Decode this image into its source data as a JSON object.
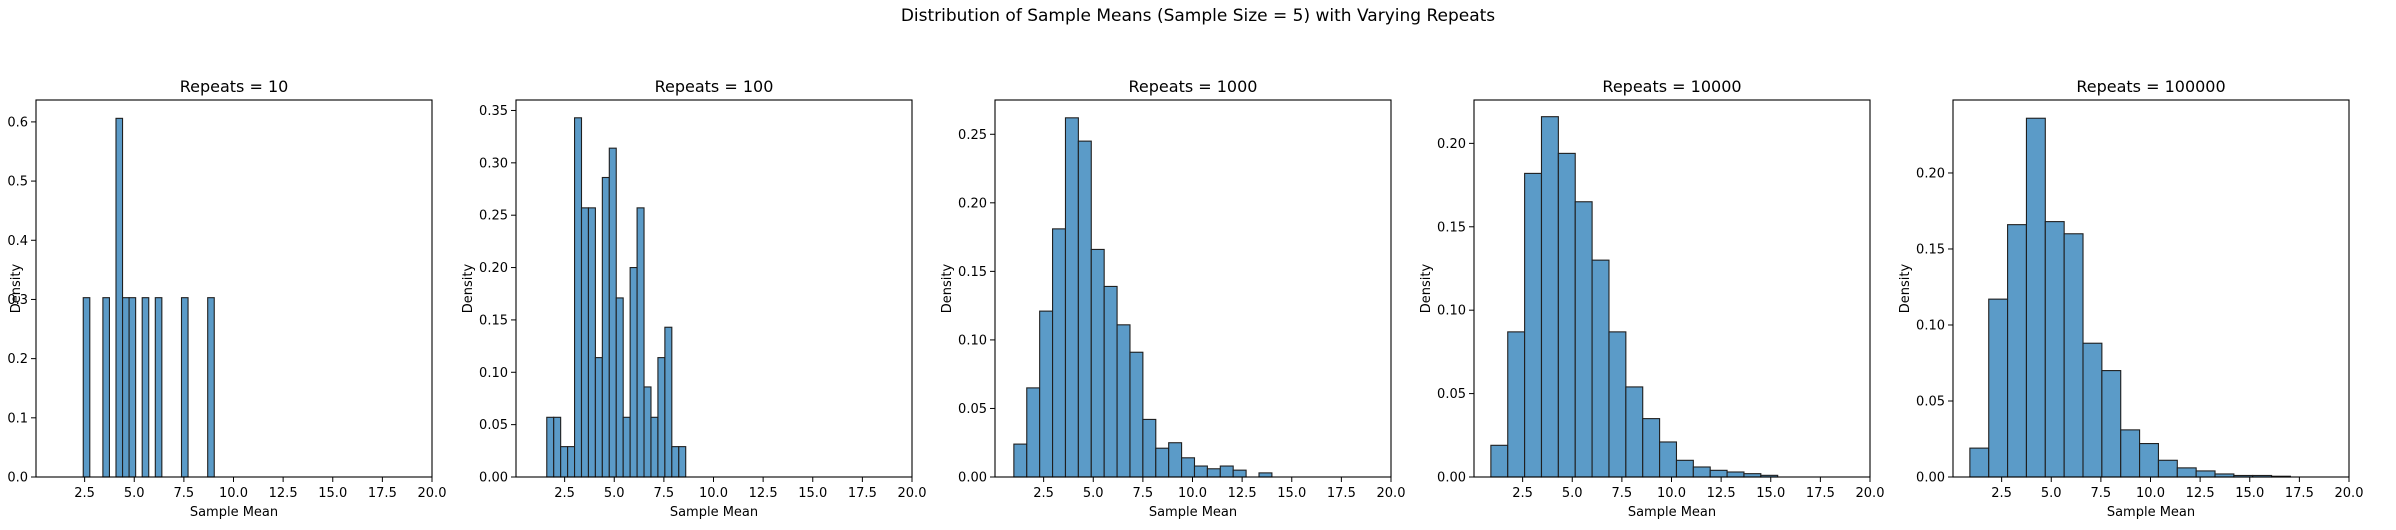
{
  "figure": {
    "suptitle": "Distribution of Sample Means (Sample Size = 5) with Varying Repeats"
  },
  "colors": {
    "bar_fill": "#5b9bc8",
    "bar_edge": "#1f1f1f"
  },
  "chart_data": [
    {
      "type": "bar",
      "title": "Repeats = 10",
      "xlabel": "Sample Mean",
      "ylabel": "Density",
      "xlim": [
        0.05,
        20.0
      ],
      "ylim": [
        0,
        0.637
      ],
      "xticks": [
        2.5,
        5.0,
        7.5,
        10.0,
        12.5,
        15.0,
        17.5,
        20.0
      ],
      "xtick_labels": [
        "2.5",
        "5.0",
        "7.5",
        "10.0",
        "12.5",
        "15.0",
        "17.5",
        "20.0"
      ],
      "yticks": [
        0,
        0.1,
        0.2,
        0.3,
        0.4,
        0.5,
        0.6
      ],
      "ytick_labels": [
        "0.0",
        "0.1",
        "0.2",
        "0.3",
        "0.4",
        "0.5",
        "0.6"
      ],
      "bins": [
        {
          "x0": 2.43,
          "x1": 2.76,
          "density": 0.303
        },
        {
          "x0": 3.42,
          "x1": 3.75,
          "density": 0.303
        },
        {
          "x0": 4.08,
          "x1": 4.41,
          "density": 0.606
        },
        {
          "x0": 4.41,
          "x1": 4.74,
          "density": 0.303
        },
        {
          "x0": 4.74,
          "x1": 5.07,
          "density": 0.303
        },
        {
          "x0": 5.4,
          "x1": 5.73,
          "density": 0.303
        },
        {
          "x0": 6.06,
          "x1": 6.39,
          "density": 0.303
        },
        {
          "x0": 7.38,
          "x1": 7.71,
          "density": 0.303
        },
        {
          "x0": 8.7,
          "x1": 9.03,
          "density": 0.303
        }
      ]
    },
    {
      "type": "bar",
      "title": "Repeats = 100",
      "xlabel": "Sample Mean",
      "ylabel": "Density",
      "xlim": [
        0.05,
        20.0
      ],
      "ylim": [
        0,
        0.36
      ],
      "xticks": [
        2.5,
        5.0,
        7.5,
        10.0,
        12.5,
        15.0,
        17.5,
        20.0
      ],
      "xtick_labels": [
        "2.5",
        "5.0",
        "7.5",
        "10.0",
        "12.5",
        "15.0",
        "17.5",
        "20.0"
      ],
      "yticks": [
        0,
        0.05,
        0.1,
        0.15,
        0.2,
        0.25,
        0.3,
        0.35
      ],
      "ytick_labels": [
        "0.00",
        "0.05",
        "0.10",
        "0.15",
        "0.20",
        "0.25",
        "0.30",
        "0.35"
      ],
      "bins": [
        {
          "x0": 1.6,
          "x1": 1.95,
          "density": 0.057
        },
        {
          "x0": 1.95,
          "x1": 2.3,
          "density": 0.057
        },
        {
          "x0": 2.3,
          "x1": 2.65,
          "density": 0.029
        },
        {
          "x0": 2.65,
          "x1": 3.0,
          "density": 0.029
        },
        {
          "x0": 3.0,
          "x1": 3.35,
          "density": 0.343
        },
        {
          "x0": 3.35,
          "x1": 3.7,
          "density": 0.257
        },
        {
          "x0": 3.7,
          "x1": 4.05,
          "density": 0.257
        },
        {
          "x0": 4.05,
          "x1": 4.4,
          "density": 0.114
        },
        {
          "x0": 4.4,
          "x1": 4.75,
          "density": 0.286
        },
        {
          "x0": 4.75,
          "x1": 5.1,
          "density": 0.314
        },
        {
          "x0": 5.1,
          "x1": 5.45,
          "density": 0.171
        },
        {
          "x0": 5.45,
          "x1": 5.8,
          "density": 0.057
        },
        {
          "x0": 5.8,
          "x1": 6.15,
          "density": 0.2
        },
        {
          "x0": 6.15,
          "x1": 6.5,
          "density": 0.257
        },
        {
          "x0": 6.5,
          "x1": 6.85,
          "density": 0.086
        },
        {
          "x0": 6.85,
          "x1": 7.2,
          "density": 0.057
        },
        {
          "x0": 7.2,
          "x1": 7.55,
          "density": 0.114
        },
        {
          "x0": 7.55,
          "x1": 7.9,
          "density": 0.143
        },
        {
          "x0": 7.9,
          "x1": 8.25,
          "density": 0.029
        },
        {
          "x0": 8.25,
          "x1": 8.6,
          "density": 0.029
        }
      ]
    },
    {
      "type": "bar",
      "title": "Repeats = 1000",
      "xlabel": "Sample Mean",
      "ylabel": "Density",
      "xlim": [
        0.05,
        20.0
      ],
      "ylim": [
        0,
        0.275
      ],
      "xticks": [
        2.5,
        5.0,
        7.5,
        10.0,
        12.5,
        15.0,
        17.5,
        20.0
      ],
      "xtick_labels": [
        "2.5",
        "5.0",
        "7.5",
        "10.0",
        "12.5",
        "15.0",
        "17.5",
        "20.0"
      ],
      "yticks": [
        0,
        0.05,
        0.1,
        0.15,
        0.2,
        0.25
      ],
      "ytick_labels": [
        "0.00",
        "0.05",
        "0.10",
        "0.15",
        "0.20",
        "0.25"
      ],
      "bins": [
        {
          "x0": 1.0,
          "x1": 1.65,
          "density": 0.024
        },
        {
          "x0": 1.65,
          "x1": 2.3,
          "density": 0.065
        },
        {
          "x0": 2.3,
          "x1": 2.95,
          "density": 0.121
        },
        {
          "x0": 2.95,
          "x1": 3.6,
          "density": 0.181
        },
        {
          "x0": 3.6,
          "x1": 4.25,
          "density": 0.262
        },
        {
          "x0": 4.25,
          "x1": 4.9,
          "density": 0.245
        },
        {
          "x0": 4.9,
          "x1": 5.55,
          "density": 0.166
        },
        {
          "x0": 5.55,
          "x1": 6.2,
          "density": 0.139
        },
        {
          "x0": 6.2,
          "x1": 6.85,
          "density": 0.111
        },
        {
          "x0": 6.85,
          "x1": 7.5,
          "density": 0.091
        },
        {
          "x0": 7.5,
          "x1": 8.15,
          "density": 0.042
        },
        {
          "x0": 8.15,
          "x1": 8.8,
          "density": 0.021
        },
        {
          "x0": 8.8,
          "x1": 9.45,
          "density": 0.025
        },
        {
          "x0": 9.45,
          "x1": 10.1,
          "density": 0.014
        },
        {
          "x0": 10.1,
          "x1": 10.75,
          "density": 0.008
        },
        {
          "x0": 10.75,
          "x1": 11.4,
          "density": 0.006
        },
        {
          "x0": 11.4,
          "x1": 12.05,
          "density": 0.008
        },
        {
          "x0": 12.05,
          "x1": 12.7,
          "density": 0.005
        },
        {
          "x0": 12.7,
          "x1": 13.35,
          "density": 0.0
        },
        {
          "x0": 13.35,
          "x1": 14.0,
          "density": 0.003
        }
      ]
    },
    {
      "type": "bar",
      "title": "Repeats = 10000",
      "xlabel": "Sample Mean",
      "ylabel": "Density",
      "xlim": [
        0.05,
        20.0
      ],
      "ylim": [
        0,
        0.226
      ],
      "xticks": [
        2.5,
        5.0,
        7.5,
        10.0,
        12.5,
        15.0,
        17.5,
        20.0
      ],
      "xtick_labels": [
        "2.5",
        "5.0",
        "7.5",
        "10.0",
        "12.5",
        "15.0",
        "17.5",
        "20.0"
      ],
      "yticks": [
        0,
        0.05,
        0.1,
        0.15,
        0.2
      ],
      "ytick_labels": [
        "0.00",
        "0.05",
        "0.10",
        "0.15",
        "0.20"
      ],
      "bins": [
        {
          "x0": 0.9,
          "x1": 1.75,
          "density": 0.019
        },
        {
          "x0": 1.75,
          "x1": 2.6,
          "density": 0.087
        },
        {
          "x0": 2.6,
          "x1": 3.45,
          "density": 0.182
        },
        {
          "x0": 3.45,
          "x1": 4.3,
          "density": 0.216
        },
        {
          "x0": 4.3,
          "x1": 5.15,
          "density": 0.194
        },
        {
          "x0": 5.15,
          "x1": 6.0,
          "density": 0.165
        },
        {
          "x0": 6.0,
          "x1": 6.85,
          "density": 0.13
        },
        {
          "x0": 6.85,
          "x1": 7.7,
          "density": 0.087
        },
        {
          "x0": 7.7,
          "x1": 8.55,
          "density": 0.054
        },
        {
          "x0": 8.55,
          "x1": 9.4,
          "density": 0.035
        },
        {
          "x0": 9.4,
          "x1": 10.25,
          "density": 0.021
        },
        {
          "x0": 10.25,
          "x1": 11.1,
          "density": 0.01
        },
        {
          "x0": 11.1,
          "x1": 11.95,
          "density": 0.006
        },
        {
          "x0": 11.95,
          "x1": 12.8,
          "density": 0.004
        },
        {
          "x0": 12.8,
          "x1": 13.65,
          "density": 0.003
        },
        {
          "x0": 13.65,
          "x1": 14.5,
          "density": 0.002
        },
        {
          "x0": 14.5,
          "x1": 15.35,
          "density": 0.001
        }
      ]
    },
    {
      "type": "bar",
      "title": "Repeats = 100000",
      "xlabel": "Sample Mean",
      "ylabel": "Density",
      "xlim": [
        0.05,
        20.0
      ],
      "ylim": [
        0,
        0.248
      ],
      "xticks": [
        2.5,
        5.0,
        7.5,
        10.0,
        12.5,
        15.0,
        17.5,
        20.0
      ],
      "xtick_labels": [
        "2.5",
        "5.0",
        "7.5",
        "10.0",
        "12.5",
        "15.0",
        "17.5",
        "20.0"
      ],
      "yticks": [
        0,
        0.05,
        0.1,
        0.15,
        0.2
      ],
      "ytick_labels": [
        "0.00",
        "0.05",
        "0.10",
        "0.15",
        "0.20"
      ],
      "bins": [
        {
          "x0": 0.9,
          "x1": 1.85,
          "density": 0.019
        },
        {
          "x0": 1.85,
          "x1": 2.8,
          "density": 0.117
        },
        {
          "x0": 2.8,
          "x1": 3.75,
          "density": 0.166
        },
        {
          "x0": 3.75,
          "x1": 4.7,
          "density": 0.236
        },
        {
          "x0": 4.7,
          "x1": 5.65,
          "density": 0.168
        },
        {
          "x0": 5.65,
          "x1": 6.6,
          "density": 0.16
        },
        {
          "x0": 6.6,
          "x1": 7.55,
          "density": 0.088
        },
        {
          "x0": 7.55,
          "x1": 8.5,
          "density": 0.07
        },
        {
          "x0": 8.5,
          "x1": 9.45,
          "density": 0.031
        },
        {
          "x0": 9.45,
          "x1": 10.4,
          "density": 0.022
        },
        {
          "x0": 10.4,
          "x1": 11.35,
          "density": 0.011
        },
        {
          "x0": 11.35,
          "x1": 12.3,
          "density": 0.006
        },
        {
          "x0": 12.3,
          "x1": 13.25,
          "density": 0.004
        },
        {
          "x0": 13.25,
          "x1": 14.2,
          "density": 0.002
        },
        {
          "x0": 14.2,
          "x1": 15.15,
          "density": 0.001
        },
        {
          "x0": 15.15,
          "x1": 16.1,
          "density": 0.001
        },
        {
          "x0": 16.1,
          "x1": 17.05,
          "density": 0.0005
        }
      ]
    }
  ]
}
